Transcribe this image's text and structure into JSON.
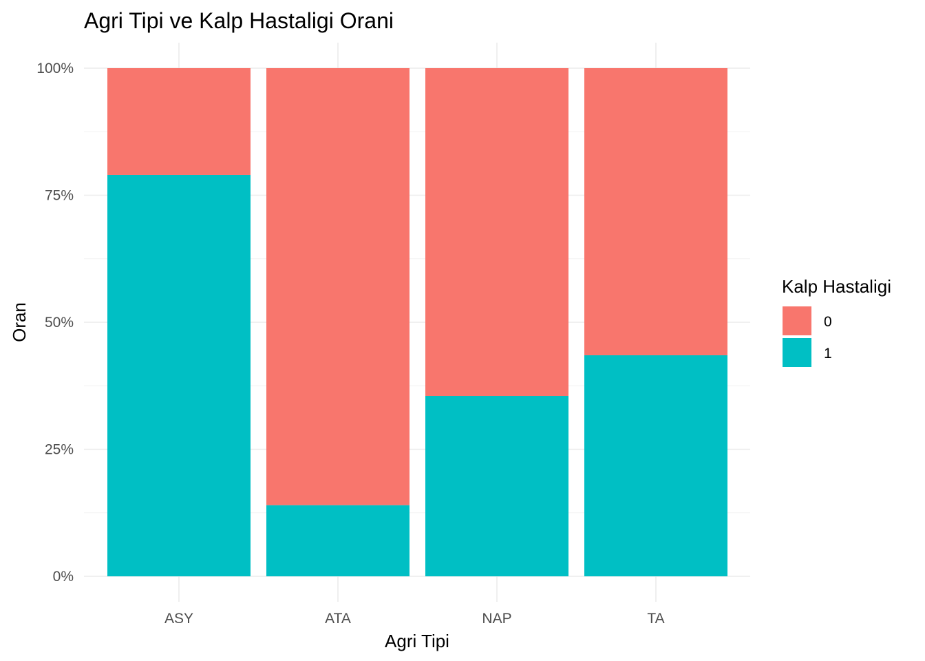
{
  "chart_data": {
    "type": "bar",
    "stacked": true,
    "title": "Agri Tipi ve Kalp Hastaligi Orani",
    "xlabel": "Agri Tipi",
    "ylabel": "Oran",
    "categories": [
      "ASY",
      "ATA",
      "NAP",
      "TA"
    ],
    "ylim": [
      0,
      1
    ],
    "yticks": [
      {
        "value": 0,
        "label": "0%"
      },
      {
        "value": 0.25,
        "label": "25%"
      },
      {
        "value": 0.5,
        "label": "50%"
      },
      {
        "value": 0.75,
        "label": "75%"
      },
      {
        "value": 1,
        "label": "100%"
      }
    ],
    "grid": true,
    "legend": {
      "title": "Kalp Hastaligi",
      "position": "right"
    },
    "series": [
      {
        "name": "0",
        "color": "#F8766D",
        "values": [
          0.21,
          0.86,
          0.645,
          0.565
        ]
      },
      {
        "name": "1",
        "color": "#00BFC4",
        "values": [
          0.79,
          0.14,
          0.355,
          0.435
        ]
      }
    ]
  }
}
